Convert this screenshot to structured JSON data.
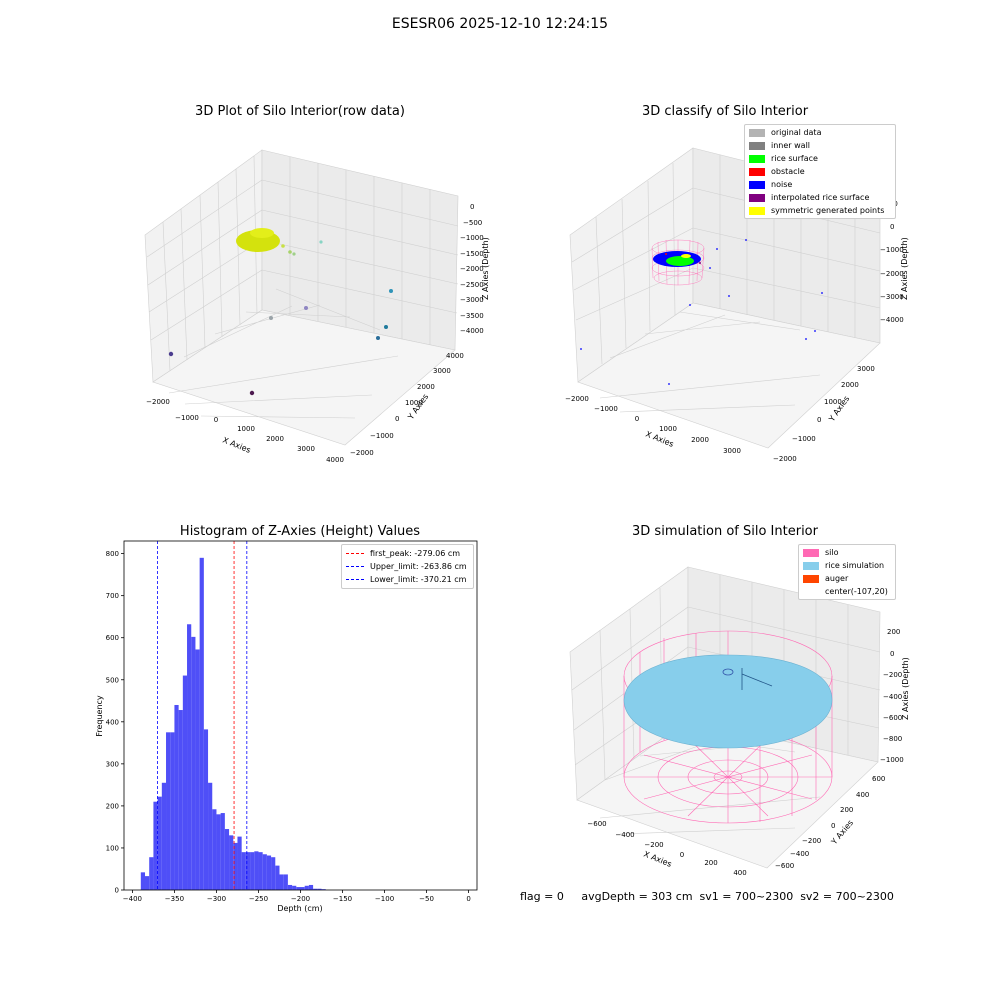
{
  "suptitle": "ESESR06 2025-12-10 12:24:15",
  "footer": "flag = 0     avgDepth = 303 cm  sv1 = 700~2300  sv2 = 700~2300",
  "panels": {
    "raw": {
      "title": "3D Plot of Silo Interior(row data)",
      "xlabel": "X Axies",
      "ylabel": "Y Axies",
      "zlabel": "Z Axies (Depth)",
      "xticks": [
        "−2000",
        "−1000",
        "0",
        "1000",
        "2000",
        "3000",
        "4000"
      ],
      "yticks": [
        "−2000",
        "−1000",
        "0",
        "1000",
        "2000",
        "3000",
        "4000"
      ],
      "zticks": [
        "0",
        "−500",
        "−1000",
        "−1500",
        "−2000",
        "−2500",
        "−3000",
        "−3500",
        "−4000"
      ]
    },
    "classify": {
      "title": "3D classify of Silo Interior",
      "xlabel": "X Axies",
      "ylabel": "Y Axies",
      "zlabel": "Z Axies (Depth)",
      "xticks": [
        "−2000",
        "−1000",
        "0",
        "1000",
        "2000",
        "3000"
      ],
      "yticks": [
        "−2000",
        "−1000",
        "0",
        "1000",
        "2000",
        "3000"
      ],
      "zticks": [
        "1000",
        "0",
        "−1000",
        "−2000",
        "−3000",
        "−4000"
      ],
      "legend": [
        {
          "label": "original data",
          "color": "#b3b3b3"
        },
        {
          "label": "inner wall",
          "color": "#808080"
        },
        {
          "label": "rice surface",
          "color": "#00ff00"
        },
        {
          "label": "obstacle",
          "color": "#ff0000"
        },
        {
          "label": "noise",
          "color": "#0000ff"
        },
        {
          "label": "interpolated rice surface",
          "color": "#800080"
        },
        {
          "label": "symmetric generated points",
          "color": "#ffff00"
        }
      ]
    },
    "simulation": {
      "title": "3D simulation of Silo Interior",
      "xlabel": "X Axies",
      "ylabel": "Y Axies",
      "zlabel": "Z Axies (Depth)",
      "xticks": [
        "−600",
        "−400",
        "−200",
        "0",
        "200",
        "400"
      ],
      "yticks": [
        "−600",
        "−400",
        "−200",
        "0",
        "200",
        "400",
        "600"
      ],
      "zticks": [
        "200",
        "0",
        "−200",
        "−400",
        "−600",
        "−800",
        "−1000"
      ],
      "legend": [
        {
          "label": "silo",
          "color": "#ff69b4"
        },
        {
          "label": "rice simulation",
          "color": "#87ceeb"
        },
        {
          "label": "auger",
          "color": "#ff4500"
        },
        {
          "label": "center(-107,20)",
          "color": ""
        }
      ]
    }
  },
  "chart_data": {
    "type": "bar",
    "title": "Histogram of Z-Axies (Height) Values",
    "xlabel": "Depth (cm)",
    "ylabel": "Frequency",
    "xlim": [
      -410,
      10
    ],
    "ylim": [
      0,
      830
    ],
    "xticks": [
      -400,
      -350,
      -300,
      -250,
      -200,
      -150,
      -100,
      -50,
      0
    ],
    "yticks": [
      0,
      100,
      200,
      300,
      400,
      500,
      600,
      700,
      800
    ],
    "bin_width": 5,
    "bins": [
      [
        -390,
        42
      ],
      [
        -385,
        33
      ],
      [
        -380,
        78
      ],
      [
        -375,
        210
      ],
      [
        -370,
        222
      ],
      [
        -365,
        255
      ],
      [
        -360,
        375
      ],
      [
        -355,
        375
      ],
      [
        -350,
        440
      ],
      [
        -345,
        428
      ],
      [
        -340,
        510
      ],
      [
        -335,
        632
      ],
      [
        -330,
        602
      ],
      [
        -325,
        572
      ],
      [
        -320,
        790
      ],
      [
        -315,
        382
      ],
      [
        -310,
        255
      ],
      [
        -305,
        192
      ],
      [
        -300,
        180
      ],
      [
        -295,
        183
      ],
      [
        -290,
        145
      ],
      [
        -285,
        130
      ],
      [
        -280,
        112
      ],
      [
        -275,
        127
      ],
      [
        -270,
        90
      ],
      [
        -265,
        90
      ],
      [
        -260,
        90
      ],
      [
        -255,
        92
      ],
      [
        -250,
        90
      ],
      [
        -245,
        85
      ],
      [
        -240,
        82
      ],
      [
        -235,
        78
      ],
      [
        -230,
        58
      ],
      [
        -225,
        37
      ],
      [
        -220,
        37
      ],
      [
        -215,
        12
      ],
      [
        -210,
        10
      ],
      [
        -205,
        7
      ],
      [
        -200,
        7
      ],
      [
        -195,
        10
      ],
      [
        -190,
        12
      ],
      [
        -185,
        3
      ],
      [
        -180,
        3
      ],
      [
        -175,
        2
      ]
    ],
    "lines": [
      {
        "label": "first_peak: -279.06 cm",
        "x": -279.06,
        "color": "#ff0000"
      },
      {
        "label": "Upper_limit: -263.86 cm",
        "x": -263.86,
        "color": "#0000ff"
      },
      {
        "label": "Lower_limit: -370.21 cm",
        "x": -370.21,
        "color": "#0000ff"
      }
    ]
  }
}
